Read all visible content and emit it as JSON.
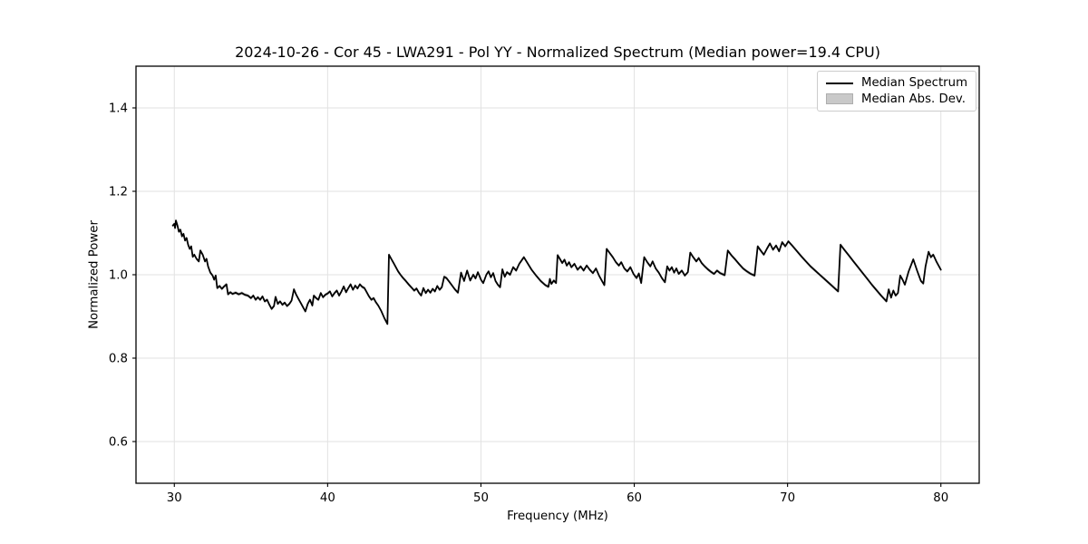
{
  "figure": {
    "title": "2024-10-26 - Cor 45 - LWA291 - Pol YY - Normalized Spectrum (Median power=19.4 CPU)",
    "background": "#ffffff"
  },
  "axes": {
    "xlabel": "Frequency (MHz)",
    "ylabel": "Normalized Power",
    "xlim": [
      27.5,
      82.5
    ],
    "ylim": [
      0.5,
      1.5
    ],
    "xticks": [
      {
        "value": 30,
        "label": "30"
      },
      {
        "value": 40,
        "label": "40"
      },
      {
        "value": 50,
        "label": "50"
      },
      {
        "value": 60,
        "label": "60"
      },
      {
        "value": 70,
        "label": "70"
      },
      {
        "value": 80,
        "label": "80"
      }
    ],
    "yticks": [
      {
        "value": 0.6,
        "label": "0.6"
      },
      {
        "value": 0.8,
        "label": "0.8"
      },
      {
        "value": 1.0,
        "label": "1.0"
      },
      {
        "value": 1.2,
        "label": "1.2"
      },
      {
        "value": 1.4,
        "label": "1.4"
      }
    ],
    "grid": true,
    "grid_color": "#e2e2e2",
    "frame_color": "#000000"
  },
  "legend": {
    "position": "upper right",
    "border_color": "#cccccc",
    "items": [
      {
        "label": "Median Spectrum",
        "swatch": "line",
        "color": "#000000"
      },
      {
        "label": "Median Abs. Dev.",
        "swatch": "patch",
        "color": "#c9c9c9"
      }
    ]
  },
  "chart_data": {
    "type": "line",
    "title": "2024-10-26 - Cor 45 - LWA291 - Pol YY - Normalized Spectrum (Median power=19.4 CPU)",
    "xlabel": "Frequency (MHz)",
    "ylabel": "Normalized Power",
    "xlim": [
      27.5,
      82.5
    ],
    "ylim": [
      0.5,
      1.5
    ],
    "grid": true,
    "legend_position": "upper right",
    "median_power_cpu": 19.4,
    "series": [
      {
        "name": "Median Spectrum",
        "type": "line",
        "color": "#000000",
        "points": [
          [
            29.9,
            1.118
          ],
          [
            30.0,
            1.122
          ],
          [
            30.05,
            1.112
          ],
          [
            30.1,
            1.13
          ],
          [
            30.2,
            1.118
          ],
          [
            30.3,
            1.103
          ],
          [
            30.4,
            1.108
          ],
          [
            30.5,
            1.092
          ],
          [
            30.6,
            1.098
          ],
          [
            30.7,
            1.082
          ],
          [
            30.8,
            1.088
          ],
          [
            30.9,
            1.072
          ],
          [
            31.0,
            1.062
          ],
          [
            31.1,
            1.068
          ],
          [
            31.2,
            1.043
          ],
          [
            31.3,
            1.048
          ],
          [
            31.45,
            1.038
          ],
          [
            31.6,
            1.032
          ],
          [
            31.7,
            1.058
          ],
          [
            31.85,
            1.048
          ],
          [
            32.0,
            1.032
          ],
          [
            32.1,
            1.038
          ],
          [
            32.2,
            1.02
          ],
          [
            32.35,
            1.005
          ],
          [
            32.5,
            0.998
          ],
          [
            32.6,
            0.988
          ],
          [
            32.7,
            0.998
          ],
          [
            32.8,
            0.968
          ],
          [
            32.95,
            0.973
          ],
          [
            33.1,
            0.966
          ],
          [
            33.25,
            0.972
          ],
          [
            33.4,
            0.977
          ],
          [
            33.5,
            0.953
          ],
          [
            33.65,
            0.958
          ],
          [
            33.8,
            0.954
          ],
          [
            34.0,
            0.957
          ],
          [
            34.2,
            0.953
          ],
          [
            34.4,
            0.956
          ],
          [
            34.6,
            0.952
          ],
          [
            34.8,
            0.95
          ],
          [
            35.0,
            0.944
          ],
          [
            35.15,
            0.95
          ],
          [
            35.3,
            0.94
          ],
          [
            35.45,
            0.946
          ],
          [
            35.6,
            0.94
          ],
          [
            35.75,
            0.948
          ],
          [
            35.9,
            0.936
          ],
          [
            36.05,
            0.94
          ],
          [
            36.2,
            0.928
          ],
          [
            36.35,
            0.918
          ],
          [
            36.5,
            0.925
          ],
          [
            36.6,
            0.947
          ],
          [
            36.75,
            0.93
          ],
          [
            36.9,
            0.936
          ],
          [
            37.05,
            0.928
          ],
          [
            37.2,
            0.933
          ],
          [
            37.35,
            0.925
          ],
          [
            37.5,
            0.93
          ],
          [
            37.65,
            0.938
          ],
          [
            37.8,
            0.965
          ],
          [
            37.95,
            0.952
          ],
          [
            38.1,
            0.942
          ],
          [
            38.25,
            0.932
          ],
          [
            38.4,
            0.922
          ],
          [
            38.55,
            0.912
          ],
          [
            38.7,
            0.93
          ],
          [
            38.85,
            0.94
          ],
          [
            39.0,
            0.926
          ],
          [
            39.1,
            0.95
          ],
          [
            39.25,
            0.944
          ],
          [
            39.4,
            0.94
          ],
          [
            39.55,
            0.956
          ],
          [
            39.7,
            0.946
          ],
          [
            39.85,
            0.952
          ],
          [
            40.0,
            0.955
          ],
          [
            40.15,
            0.96
          ],
          [
            40.3,
            0.948
          ],
          [
            40.45,
            0.956
          ],
          [
            40.6,
            0.962
          ],
          [
            40.75,
            0.95
          ],
          [
            40.9,
            0.96
          ],
          [
            41.05,
            0.972
          ],
          [
            41.2,
            0.958
          ],
          [
            41.35,
            0.968
          ],
          [
            41.5,
            0.977
          ],
          [
            41.65,
            0.964
          ],
          [
            41.8,
            0.974
          ],
          [
            41.95,
            0.967
          ],
          [
            42.1,
            0.977
          ],
          [
            42.25,
            0.971
          ],
          [
            42.4,
            0.968
          ],
          [
            42.55,
            0.958
          ],
          [
            42.7,
            0.948
          ],
          [
            42.85,
            0.94
          ],
          [
            43.0,
            0.944
          ],
          [
            43.15,
            0.934
          ],
          [
            43.3,
            0.926
          ],
          [
            43.5,
            0.913
          ],
          [
            43.7,
            0.896
          ],
          [
            43.9,
            0.882
          ],
          [
            44.0,
            1.048
          ],
          [
            44.15,
            1.038
          ],
          [
            44.3,
            1.028
          ],
          [
            44.45,
            1.018
          ],
          [
            44.6,
            1.008
          ],
          [
            44.75,
            1.0
          ],
          [
            44.9,
            0.993
          ],
          [
            45.1,
            0.985
          ],
          [
            45.3,
            0.976
          ],
          [
            45.5,
            0.968
          ],
          [
            45.65,
            0.962
          ],
          [
            45.8,
            0.967
          ],
          [
            45.95,
            0.957
          ],
          [
            46.1,
            0.95
          ],
          [
            46.25,
            0.968
          ],
          [
            46.4,
            0.956
          ],
          [
            46.55,
            0.964
          ],
          [
            46.7,
            0.957
          ],
          [
            46.85,
            0.966
          ],
          [
            47.0,
            0.96
          ],
          [
            47.15,
            0.973
          ],
          [
            47.3,
            0.964
          ],
          [
            47.45,
            0.97
          ],
          [
            47.6,
            0.995
          ],
          [
            47.75,
            0.992
          ],
          [
            47.9,
            0.985
          ],
          [
            48.1,
            0.975
          ],
          [
            48.3,
            0.965
          ],
          [
            48.5,
            0.957
          ],
          [
            48.7,
            1.005
          ],
          [
            48.9,
            0.985
          ],
          [
            49.1,
            1.01
          ],
          [
            49.3,
            0.986
          ],
          [
            49.5,
            1.0
          ],
          [
            49.65,
            0.991
          ],
          [
            49.8,
            1.006
          ],
          [
            50.0,
            0.988
          ],
          [
            50.15,
            0.98
          ],
          [
            50.35,
            1.0
          ],
          [
            50.5,
            1.008
          ],
          [
            50.65,
            0.994
          ],
          [
            50.8,
            1.004
          ],
          [
            50.95,
            0.985
          ],
          [
            51.1,
            0.976
          ],
          [
            51.25,
            0.97
          ],
          [
            51.4,
            1.013
          ],
          [
            51.55,
            0.995
          ],
          [
            51.7,
            1.006
          ],
          [
            51.9,
            1.0
          ],
          [
            52.1,
            1.018
          ],
          [
            52.3,
            1.01
          ],
          [
            52.5,
            1.026
          ],
          [
            52.8,
            1.042
          ],
          [
            53.0,
            1.03
          ],
          [
            53.3,
            1.012
          ],
          [
            53.6,
            0.998
          ],
          [
            53.9,
            0.985
          ],
          [
            54.2,
            0.975
          ],
          [
            54.4,
            0.971
          ],
          [
            54.5,
            0.99
          ],
          [
            54.6,
            0.978
          ],
          [
            54.75,
            0.986
          ],
          [
            54.9,
            0.98
          ],
          [
            55.0,
            1.047
          ],
          [
            55.15,
            1.038
          ],
          [
            55.3,
            1.028
          ],
          [
            55.45,
            1.036
          ],
          [
            55.6,
            1.022
          ],
          [
            55.75,
            1.03
          ],
          [
            55.9,
            1.018
          ],
          [
            56.1,
            1.026
          ],
          [
            56.3,
            1.012
          ],
          [
            56.5,
            1.02
          ],
          [
            56.7,
            1.01
          ],
          [
            56.9,
            1.022
          ],
          [
            57.1,
            1.012
          ],
          [
            57.3,
            1.004
          ],
          [
            57.5,
            1.015
          ],
          [
            57.7,
            0.998
          ],
          [
            57.9,
            0.985
          ],
          [
            58.05,
            0.975
          ],
          [
            58.2,
            1.062
          ],
          [
            58.4,
            1.052
          ],
          [
            58.6,
            1.042
          ],
          [
            58.8,
            1.03
          ],
          [
            59.0,
            1.022
          ],
          [
            59.15,
            1.03
          ],
          [
            59.35,
            1.015
          ],
          [
            59.55,
            1.008
          ],
          [
            59.75,
            1.018
          ],
          [
            59.95,
            1.002
          ],
          [
            60.15,
            0.992
          ],
          [
            60.3,
            1.003
          ],
          [
            60.45,
            0.98
          ],
          [
            60.65,
            1.042
          ],
          [
            60.85,
            1.03
          ],
          [
            61.05,
            1.02
          ],
          [
            61.2,
            1.032
          ],
          [
            61.4,
            1.015
          ],
          [
            61.6,
            1.005
          ],
          [
            61.8,
            0.992
          ],
          [
            62.0,
            0.982
          ],
          [
            62.15,
            1.02
          ],
          [
            62.3,
            1.01
          ],
          [
            62.45,
            1.018
          ],
          [
            62.6,
            1.005
          ],
          [
            62.75,
            1.015
          ],
          [
            62.9,
            1.002
          ],
          [
            63.1,
            1.01
          ],
          [
            63.3,
            0.998
          ],
          [
            63.5,
            1.006
          ],
          [
            63.65,
            1.053
          ],
          [
            63.85,
            1.042
          ],
          [
            64.05,
            1.032
          ],
          [
            64.2,
            1.04
          ],
          [
            64.4,
            1.028
          ],
          [
            64.6,
            1.02
          ],
          [
            64.8,
            1.013
          ],
          [
            65.0,
            1.007
          ],
          [
            65.2,
            1.002
          ],
          [
            65.4,
            1.01
          ],
          [
            65.6,
            1.004
          ],
          [
            65.9,
            0.999
          ],
          [
            66.1,
            1.058
          ],
          [
            66.35,
            1.046
          ],
          [
            66.6,
            1.036
          ],
          [
            66.85,
            1.025
          ],
          [
            67.1,
            1.015
          ],
          [
            67.35,
            1.008
          ],
          [
            67.6,
            1.002
          ],
          [
            67.85,
            0.998
          ],
          [
            68.05,
            1.068
          ],
          [
            68.25,
            1.058
          ],
          [
            68.45,
            1.048
          ],
          [
            68.65,
            1.062
          ],
          [
            68.85,
            1.075
          ],
          [
            69.05,
            1.06
          ],
          [
            69.25,
            1.07
          ],
          [
            69.45,
            1.056
          ],
          [
            69.65,
            1.078
          ],
          [
            69.85,
            1.068
          ],
          [
            70.05,
            1.08
          ],
          [
            70.3,
            1.07
          ],
          [
            70.6,
            1.057
          ],
          [
            70.9,
            1.044
          ],
          [
            71.2,
            1.032
          ],
          [
            71.5,
            1.02
          ],
          [
            71.8,
            1.01
          ],
          [
            72.1,
            1.0
          ],
          [
            72.4,
            0.99
          ],
          [
            72.7,
            0.98
          ],
          [
            73.0,
            0.97
          ],
          [
            73.3,
            0.96
          ],
          [
            73.45,
            1.072
          ],
          [
            73.7,
            1.06
          ],
          [
            74.0,
            1.046
          ],
          [
            74.3,
            1.032
          ],
          [
            74.6,
            1.018
          ],
          [
            74.9,
            1.004
          ],
          [
            75.2,
            0.99
          ],
          [
            75.5,
            0.976
          ],
          [
            75.8,
            0.963
          ],
          [
            76.1,
            0.95
          ],
          [
            76.45,
            0.936
          ],
          [
            76.6,
            0.965
          ],
          [
            76.75,
            0.945
          ],
          [
            76.9,
            0.962
          ],
          [
            77.05,
            0.95
          ],
          [
            77.2,
            0.956
          ],
          [
            77.35,
            0.998
          ],
          [
            77.5,
            0.988
          ],
          [
            77.65,
            0.976
          ],
          [
            77.9,
            1.008
          ],
          [
            78.2,
            1.037
          ],
          [
            78.45,
            1.01
          ],
          [
            78.7,
            0.985
          ],
          [
            78.85,
            0.979
          ],
          [
            79.0,
            1.02
          ],
          [
            79.2,
            1.055
          ],
          [
            79.35,
            1.042
          ],
          [
            79.5,
            1.048
          ],
          [
            79.7,
            1.032
          ],
          [
            80.0,
            1.012
          ]
        ]
      },
      {
        "name": "Median Abs. Dev.",
        "type": "band",
        "color": "#c9c9c9",
        "halfwidth": 0.004
      }
    ]
  }
}
